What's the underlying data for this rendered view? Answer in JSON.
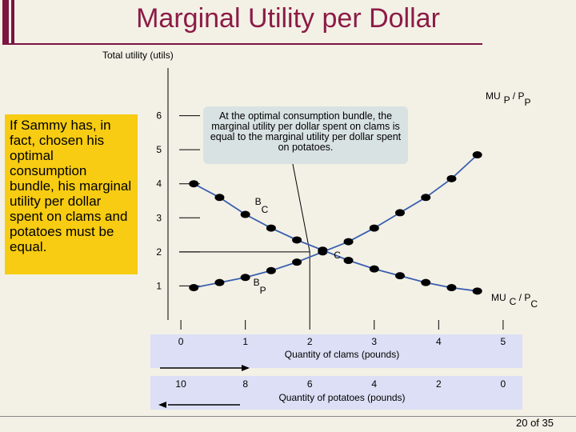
{
  "slide": {
    "title": "Marginal Utility per Dollar",
    "page_number": "20 of 35"
  },
  "side_note": "If Sammy has, in fact, chosen his optimal consumption bundle, his marginal utility per dollar spent on clams and potatoes must be equal.",
  "callout": "At the optimal consumption bundle, the marginal utility per dollar spent on clams is equal to the marginal utility per dollar spent on potatoes.",
  "colors": {
    "title": "#8c1b46",
    "highlight_box": "#f7cc12",
    "callout_box": "#d9e2e2",
    "axis_band": "#dcdff5",
    "curve": "#3a5fae",
    "marker": "#000000"
  },
  "chart_data": {
    "type": "line",
    "ylabel": "Total utility (utils)",
    "ylim": [
      0,
      7.4
    ],
    "yticks": [
      1,
      2,
      3,
      4,
      5,
      6
    ],
    "xlim": [
      -0.2,
      5.2
    ],
    "xlabel": "Quantity of clams (pounds)",
    "xticks": [
      "0",
      "1",
      "2",
      "3",
      "4",
      "5"
    ],
    "x2label": "Quantity of potatoes (pounds)",
    "x2ticks": [
      "10",
      "8",
      "6",
      "4",
      "2",
      "0"
    ],
    "series": [
      {
        "label_main": "MU",
        "label_sub1": "P",
        "label_mid": " / P",
        "label_sub2": "P",
        "x": [
          0.2,
          0.6,
          1.0,
          1.4,
          1.8,
          2.2,
          2.6,
          3.0,
          3.4,
          3.8,
          4.2,
          4.6
        ],
        "y": [
          0.95,
          1.1,
          1.25,
          1.45,
          1.7,
          2.0,
          2.3,
          2.7,
          3.15,
          3.6,
          4.15,
          4.85
        ]
      },
      {
        "label_main": "MU",
        "label_sub1": "C",
        "label_mid": " / P",
        "label_sub2": "C",
        "x": [
          0.2,
          0.6,
          1.0,
          1.4,
          1.8,
          2.2,
          2.6,
          3.0,
          3.4,
          3.8,
          4.2,
          4.6
        ],
        "y": [
          4.0,
          3.6,
          3.1,
          2.7,
          2.35,
          2.05,
          1.75,
          1.5,
          1.3,
          1.1,
          0.95,
          0.85
        ]
      }
    ],
    "points": [
      {
        "label": "B",
        "sub": "C",
        "x": 1.0,
        "y": 3.1
      },
      {
        "label": "C",
        "sub": "",
        "x": 2.0,
        "y": 2.0
      },
      {
        "label": "B",
        "sub": "P",
        "x": 1.0,
        "y": 1.25
      }
    ]
  }
}
